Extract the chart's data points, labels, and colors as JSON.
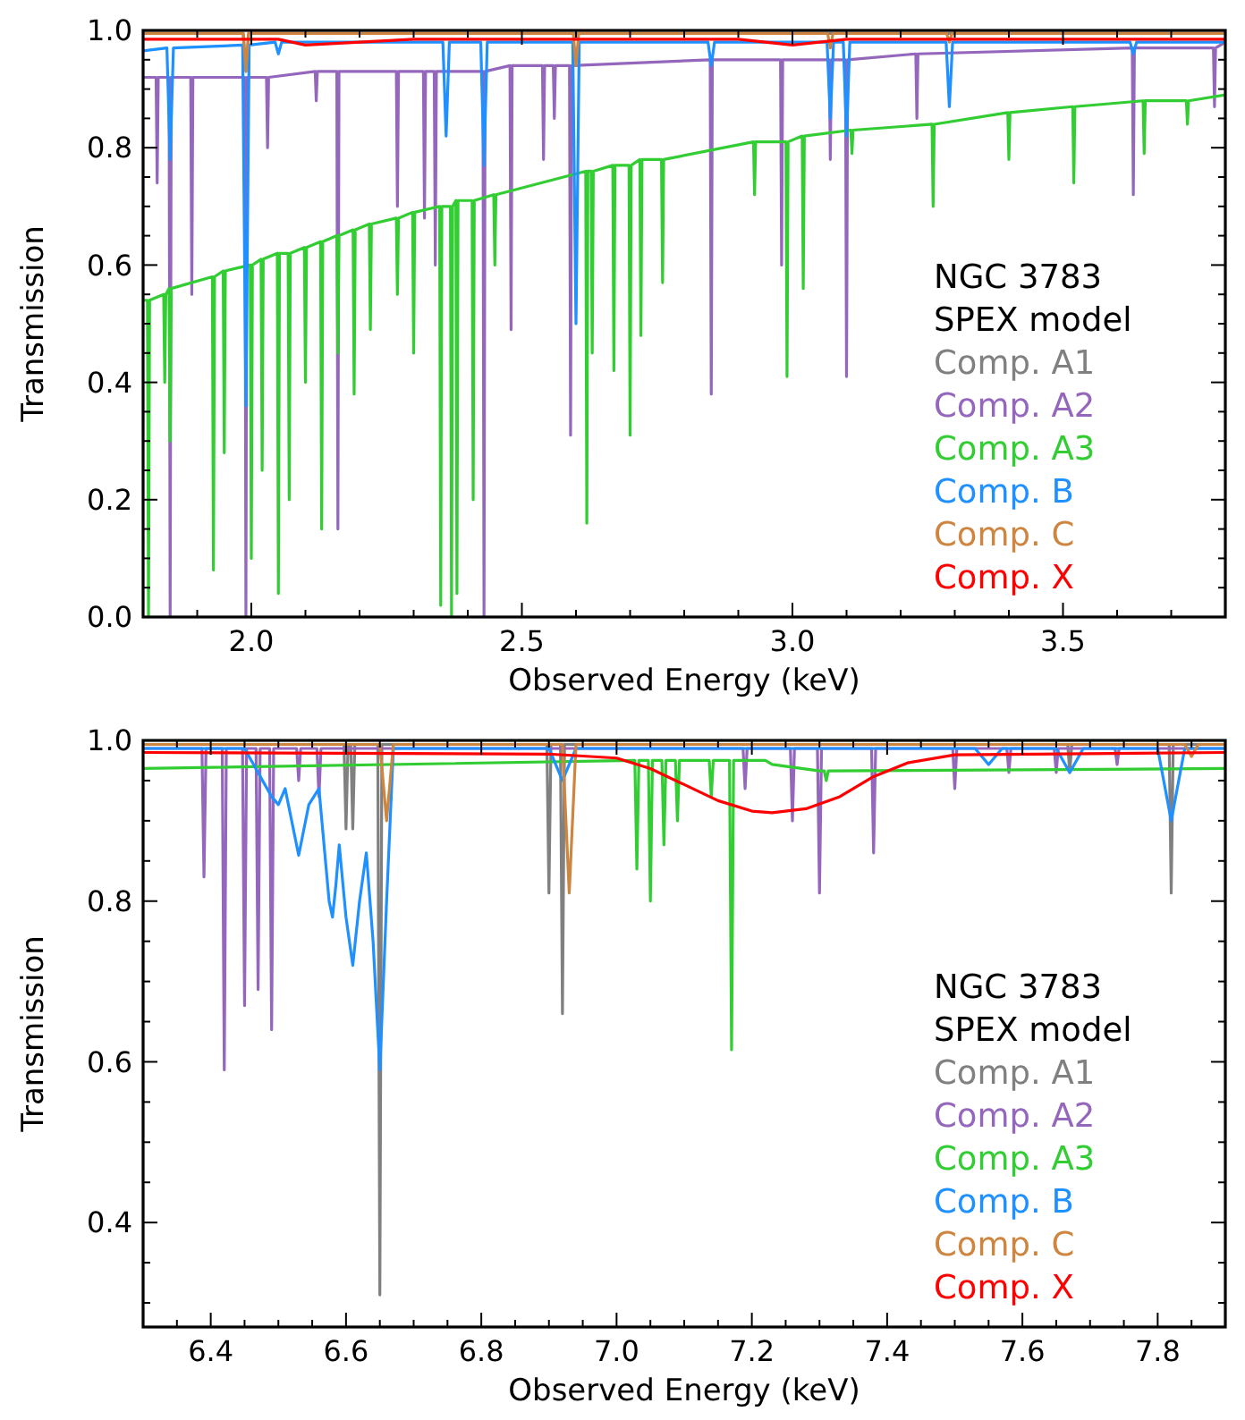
{
  "chart_data": [
    {
      "type": "line",
      "xlabel": "Observed Energy (keV)",
      "ylabel": "Transmission",
      "xlim": [
        1.8,
        3.8
      ],
      "ylim": [
        0,
        1.0
      ],
      "xticks": [
        {
          "value": 1.9,
          "label": null
        },
        {
          "value": 2.0,
          "label": "2.0"
        },
        {
          "value": 2.1,
          "label": null
        },
        {
          "value": 2.2,
          "label": null
        },
        {
          "value": 2.3,
          "label": null
        },
        {
          "value": 2.4,
          "label": null
        },
        {
          "value": 2.5,
          "label": "2.5"
        },
        {
          "value": 2.6,
          "label": null
        },
        {
          "value": 2.7,
          "label": null
        },
        {
          "value": 2.8,
          "label": null
        },
        {
          "value": 2.9,
          "label": null
        },
        {
          "value": 3.0,
          "label": "3.0"
        },
        {
          "value": 3.1,
          "label": null
        },
        {
          "value": 3.2,
          "label": null
        },
        {
          "value": 3.3,
          "label": null
        },
        {
          "value": 3.4,
          "label": null
        },
        {
          "value": 3.5,
          "label": "3.5"
        },
        {
          "value": 3.6,
          "label": null
        },
        {
          "value": 3.7,
          "label": null
        }
      ],
      "yticks": [
        {
          "value": 0,
          "label": "0.0"
        },
        {
          "value": 0.05,
          "label": null
        },
        {
          "value": 0.1,
          "label": null
        },
        {
          "value": 0.15,
          "label": null
        },
        {
          "value": 0.2,
          "label": "0.2"
        },
        {
          "value": 0.25,
          "label": null
        },
        {
          "value": 0.3,
          "label": null
        },
        {
          "value": 0.35,
          "label": null
        },
        {
          "value": 0.4,
          "label": "0.4"
        },
        {
          "value": 0.45,
          "label": null
        },
        {
          "value": 0.5,
          "label": null
        },
        {
          "value": 0.55,
          "label": null
        },
        {
          "value": 0.6,
          "label": "0.6"
        },
        {
          "value": 0.65,
          "label": null
        },
        {
          "value": 0.7,
          "label": null
        },
        {
          "value": 0.75,
          "label": null
        },
        {
          "value": 0.8,
          "label": "0.8"
        },
        {
          "value": 0.85,
          "label": null
        },
        {
          "value": 0.9,
          "label": null
        },
        {
          "value": 0.95,
          "label": null
        },
        {
          "value": 1.0,
          "label": "1.0"
        }
      ],
      "legend": "bottom right",
      "annotations": [
        "NGC 3783",
        "SPEX model"
      ],
      "series": [
        {
          "name": "Comp. A1",
          "color": "#808080",
          "x": [
            1.8,
            1.985,
            1.99,
            1.995,
            3.8
          ],
          "values": [
            0.995,
            0.995,
            0.93,
            0.995,
            0.995
          ]
        },
        {
          "name": "Comp. A2",
          "color": "#9467bd",
          "x": [
            1.8,
            1.824,
            1.826,
            1.828,
            1.848,
            1.85,
            1.852,
            1.888,
            1.89,
            1.892,
            1.988,
            1.99,
            1.992,
            2.028,
            2.03,
            2.032,
            2.118,
            2.12,
            2.122,
            2.158,
            2.16,
            2.162,
            2.268,
            2.27,
            2.272,
            2.318,
            2.32,
            2.322,
            2.338,
            2.34,
            2.342,
            2.428,
            2.43,
            2.432,
            2.478,
            2.48,
            2.482,
            2.538,
            2.54,
            2.542,
            2.558,
            2.56,
            2.562,
            2.588,
            2.59,
            2.592,
            2.848,
            2.85,
            2.852,
            2.978,
            2.98,
            2.982,
            3.068,
            3.07,
            3.072,
            3.098,
            3.1,
            3.102,
            3.228,
            3.23,
            3.232,
            3.628,
            3.63,
            3.632,
            3.778,
            3.78,
            3.782,
            3.8
          ],
          "values": [
            0.92,
            0.92,
            0.74,
            0.92,
            0.92,
            0,
            0.92,
            0.92,
            0.55,
            0.92,
            0.92,
            0,
            0.92,
            0.92,
            0.8,
            0.92,
            0.93,
            0.88,
            0.93,
            0.93,
            0.15,
            0.93,
            0.93,
            0.7,
            0.93,
            0.93,
            0.68,
            0.93,
            0.93,
            0.6,
            0.93,
            0.93,
            0,
            0.93,
            0.94,
            0.49,
            0.94,
            0.94,
            0.78,
            0.94,
            0.94,
            0.85,
            0.94,
            0.94,
            0.31,
            0.94,
            0.95,
            0.38,
            0.95,
            0.95,
            0.6,
            0.95,
            0.95,
            0.78,
            0.95,
            0.95,
            0.41,
            0.95,
            0.96,
            0.85,
            0.96,
            0.97,
            0.72,
            0.97,
            0.97,
            0.87,
            0.97,
            0.98
          ]
        },
        {
          "name": "Comp. A3",
          "color": "#32cd32",
          "x": [
            1.8,
            1.808,
            1.81,
            1.812,
            1.838,
            1.84,
            1.842,
            1.848,
            1.85,
            1.852,
            1.928,
            1.93,
            1.932,
            1.948,
            1.95,
            1.952,
            1.998,
            2.0,
            2.002,
            2.018,
            2.02,
            2.022,
            2.048,
            2.05,
            2.052,
            2.068,
            2.07,
            2.072,
            2.098,
            2.1,
            2.102,
            2.128,
            2.13,
            2.132,
            2.158,
            2.16,
            2.162,
            2.188,
            2.19,
            2.192,
            2.218,
            2.22,
            2.222,
            2.268,
            2.27,
            2.272,
            2.298,
            2.3,
            2.302,
            2.348,
            2.35,
            2.352,
            2.368,
            2.37,
            2.372,
            2.378,
            2.38,
            2.382,
            2.408,
            2.41,
            2.412,
            2.448,
            2.45,
            2.452,
            2.618,
            2.62,
            2.622,
            2.628,
            2.63,
            2.632,
            2.668,
            2.67,
            2.672,
            2.698,
            2.7,
            2.702,
            2.718,
            2.72,
            2.722,
            2.758,
            2.76,
            2.762,
            2.928,
            2.93,
            2.932,
            2.988,
            2.99,
            2.992,
            3.018,
            3.02,
            3.022,
            3.108,
            3.11,
            3.112,
            3.258,
            3.26,
            3.262,
            3.398,
            3.4,
            3.402,
            3.518,
            3.52,
            3.522,
            3.648,
            3.65,
            3.652,
            3.728,
            3.73,
            3.732,
            3.8
          ],
          "values": [
            0.54,
            0.54,
            0,
            0.54,
            0.55,
            0.4,
            0.55,
            0.56,
            0.3,
            0.56,
            0.58,
            0.08,
            0.58,
            0.59,
            0.28,
            0.59,
            0.6,
            0.1,
            0.6,
            0.61,
            0.25,
            0.61,
            0.62,
            0.04,
            0.62,
            0.62,
            0.2,
            0.62,
            0.63,
            0.4,
            0.63,
            0.64,
            0.15,
            0.64,
            0.65,
            0.45,
            0.65,
            0.66,
            0.38,
            0.66,
            0.67,
            0.49,
            0.67,
            0.68,
            0.55,
            0.68,
            0.69,
            0.45,
            0.69,
            0.7,
            0.02,
            0.7,
            0.7,
            0,
            0.7,
            0.71,
            0.04,
            0.71,
            0.71,
            0.2,
            0.71,
            0.72,
            0.6,
            0.72,
            0.76,
            0.16,
            0.76,
            0.76,
            0.45,
            0.76,
            0.77,
            0.42,
            0.77,
            0.77,
            0.31,
            0.77,
            0.78,
            0.48,
            0.78,
            0.78,
            0.57,
            0.78,
            0.81,
            0.72,
            0.81,
            0.81,
            0.41,
            0.81,
            0.82,
            0.56,
            0.82,
            0.83,
            0.79,
            0.83,
            0.84,
            0.7,
            0.84,
            0.86,
            0.78,
            0.86,
            0.87,
            0.74,
            0.87,
            0.88,
            0.79,
            0.88,
            0.88,
            0.84,
            0.88,
            0.89
          ]
        },
        {
          "name": "Comp. B",
          "color": "#1e90ff",
          "x": [
            1.8,
            1.844,
            1.85,
            1.856,
            1.984,
            1.99,
            1.996,
            2.044,
            2.05,
            2.056,
            2.354,
            2.36,
            2.366,
            2.424,
            2.43,
            2.436,
            2.594,
            2.6,
            2.606,
            2.844,
            2.85,
            2.856,
            3.064,
            3.07,
            3.076,
            3.094,
            3.1,
            3.106,
            3.284,
            3.29,
            3.296,
            3.624,
            3.63,
            3.636,
            3.8
          ],
          "values": [
            0.965,
            0.97,
            0.78,
            0.97,
            0.975,
            0.36,
            0.975,
            0.98,
            0.96,
            0.98,
            0.98,
            0.82,
            0.98,
            0.98,
            0.77,
            0.98,
            0.98,
            0.5,
            0.98,
            0.98,
            0.94,
            0.98,
            0.98,
            0.85,
            0.98,
            0.98,
            0.82,
            0.98,
            0.98,
            0.87,
            0.98,
            0.98,
            0.96,
            0.98,
            0.98
          ]
        },
        {
          "name": "Comp. C",
          "color": "#cd853f",
          "x": [
            1.8,
            1.985,
            1.99,
            1.995,
            2.595,
            2.6,
            2.605,
            3.065,
            3.07,
            3.075,
            3.285,
            3.29,
            3.295,
            3.8
          ],
          "values": [
            0.995,
            0.995,
            0.93,
            0.995,
            0.995,
            0.94,
            0.995,
            0.995,
            0.97,
            0.995,
            0.995,
            0.98,
            0.995,
            0.995
          ]
        },
        {
          "name": "Comp. X",
          "color": "#ff0000",
          "x": [
            1.8,
            2.05,
            2.1,
            2.2,
            2.3,
            2.9,
            3.0,
            3.1,
            3.8
          ],
          "values": [
            0.985,
            0.985,
            0.975,
            0.98,
            0.985,
            0.985,
            0.975,
            0.985,
            0.985
          ]
        }
      ]
    },
    {
      "type": "line",
      "xlabel": "Observed Energy (keV)",
      "ylabel": "Transmission",
      "xlim": [
        6.3,
        7.9
      ],
      "ylim": [
        0.27,
        1.0
      ],
      "xticks": [
        {
          "value": 6.35,
          "label": null
        },
        {
          "value": 6.4,
          "label": "6.4"
        },
        {
          "value": 6.45,
          "label": null
        },
        {
          "value": 6.5,
          "label": null
        },
        {
          "value": 6.55,
          "label": null
        },
        {
          "value": 6.6,
          "label": "6.6"
        },
        {
          "value": 6.65,
          "label": null
        },
        {
          "value": 6.7,
          "label": null
        },
        {
          "value": 6.75,
          "label": null
        },
        {
          "value": 6.8,
          "label": "6.8"
        },
        {
          "value": 6.85,
          "label": null
        },
        {
          "value": 6.9,
          "label": null
        },
        {
          "value": 6.95,
          "label": null
        },
        {
          "value": 7.0,
          "label": "7.0"
        },
        {
          "value": 7.05,
          "label": null
        },
        {
          "value": 7.1,
          "label": null
        },
        {
          "value": 7.15,
          "label": null
        },
        {
          "value": 7.2,
          "label": "7.2"
        },
        {
          "value": 7.25,
          "label": null
        },
        {
          "value": 7.3,
          "label": null
        },
        {
          "value": 7.35,
          "label": null
        },
        {
          "value": 7.4,
          "label": "7.4"
        },
        {
          "value": 7.45,
          "label": null
        },
        {
          "value": 7.5,
          "label": null
        },
        {
          "value": 7.55,
          "label": null
        },
        {
          "value": 7.6,
          "label": "7.6"
        },
        {
          "value": 7.65,
          "label": null
        },
        {
          "value": 7.7,
          "label": null
        },
        {
          "value": 7.75,
          "label": null
        },
        {
          "value": 7.8,
          "label": "7.8"
        },
        {
          "value": 7.85,
          "label": null
        }
      ],
      "yticks": [
        {
          "value": 0.3,
          "label": null
        },
        {
          "value": 0.35,
          "label": null
        },
        {
          "value": 0.4,
          "label": "0.4"
        },
        {
          "value": 0.45,
          "label": null
        },
        {
          "value": 0.5,
          "label": null
        },
        {
          "value": 0.55,
          "label": null
        },
        {
          "value": 0.6,
          "label": "0.6"
        },
        {
          "value": 0.65,
          "label": null
        },
        {
          "value": 0.7,
          "label": null
        },
        {
          "value": 0.75,
          "label": null
        },
        {
          "value": 0.8,
          "label": "0.8"
        },
        {
          "value": 0.85,
          "label": null
        },
        {
          "value": 0.9,
          "label": null
        },
        {
          "value": 0.95,
          "label": null
        },
        {
          "value": 1.0,
          "label": "1.0"
        }
      ],
      "legend": "bottom right",
      "annotations": [
        "NGC 3783",
        "SPEX model"
      ],
      "series": [
        {
          "name": "Comp. A1",
          "color": "#808080",
          "x": [
            6.3,
            6.597,
            6.6,
            6.603,
            6.607,
            6.61,
            6.613,
            6.647,
            6.65,
            6.653,
            6.897,
            6.9,
            6.903,
            6.917,
            6.92,
            6.923,
            7.667,
            7.67,
            7.673,
            7.817,
            7.82,
            7.823,
            7.9
          ],
          "values": [
            0.995,
            0.995,
            0.89,
            0.995,
            0.995,
            0.89,
            0.995,
            0.995,
            0.31,
            0.995,
            0.995,
            0.81,
            0.995,
            0.995,
            0.66,
            0.995,
            0.995,
            0.96,
            0.995,
            0.995,
            0.81,
            0.995,
            0.995
          ]
        },
        {
          "name": "Comp. A2",
          "color": "#9467bd",
          "x": [
            6.3,
            6.387,
            6.39,
            6.393,
            6.417,
            6.42,
            6.423,
            6.447,
            6.45,
            6.453,
            6.467,
            6.47,
            6.473,
            6.487,
            6.49,
            6.493,
            6.527,
            6.53,
            6.533,
            6.557,
            6.56,
            6.563,
            7.187,
            7.19,
            7.193,
            7.257,
            7.26,
            7.263,
            7.297,
            7.3,
            7.303,
            7.377,
            7.38,
            7.383,
            7.497,
            7.5,
            7.503,
            7.577,
            7.58,
            7.583,
            7.647,
            7.65,
            7.653,
            7.737,
            7.74,
            7.743,
            7.9
          ],
          "values": [
            0.99,
            0.99,
            0.83,
            0.99,
            0.99,
            0.59,
            0.99,
            0.99,
            0.67,
            0.99,
            0.99,
            0.69,
            0.99,
            0.99,
            0.64,
            0.99,
            0.99,
            0.95,
            0.99,
            0.99,
            0.93,
            0.99,
            0.99,
            0.94,
            0.99,
            0.99,
            0.9,
            0.99,
            0.99,
            0.81,
            0.99,
            0.99,
            0.86,
            0.99,
            0.99,
            0.94,
            0.99,
            0.99,
            0.96,
            0.99,
            0.99,
            0.96,
            0.99,
            0.99,
            0.97,
            0.99,
            0.99
          ]
        },
        {
          "name": "Comp. A3",
          "color": "#32cd32",
          "x": [
            6.3,
            7.027,
            7.03,
            7.033,
            7.047,
            7.05,
            7.053,
            7.067,
            7.07,
            7.073,
            7.087,
            7.09,
            7.093,
            7.137,
            7.14,
            7.143,
            7.167,
            7.17,
            7.173,
            7.22,
            7.23,
            7.3,
            7.307,
            7.31,
            7.313,
            7.9
          ],
          "values": [
            0.965,
            0.975,
            0.84,
            0.975,
            0.975,
            0.8,
            0.975,
            0.975,
            0.87,
            0.975,
            0.975,
            0.9,
            0.975,
            0.975,
            0.93,
            0.975,
            0.975,
            0.615,
            0.975,
            0.975,
            0.97,
            0.962,
            0.962,
            0.95,
            0.962,
            0.965
          ]
        },
        {
          "name": "Comp. B",
          "color": "#1e90ff",
          "x": [
            6.3,
            6.45,
            6.47,
            6.49,
            6.5,
            6.51,
            6.53,
            6.545,
            6.56,
            6.575,
            6.58,
            6.585,
            6.59,
            6.6,
            6.61,
            6.62,
            6.63,
            6.64,
            6.65,
            6.66,
            6.67,
            6.9,
            6.92,
            6.94,
            7.53,
            7.55,
            7.57,
            7.65,
            7.67,
            7.69,
            7.8,
            7.82,
            7.84,
            7.9
          ],
          "values": [
            0.99,
            0.99,
            0.96,
            0.93,
            0.92,
            0.94,
            0.857,
            0.92,
            0.94,
            0.8,
            0.78,
            0.82,
            0.87,
            0.78,
            0.72,
            0.8,
            0.86,
            0.75,
            0.59,
            0.8,
            0.99,
            0.99,
            0.95,
            0.99,
            0.99,
            0.97,
            0.99,
            0.99,
            0.96,
            0.99,
            0.99,
            0.9,
            0.99,
            0.99
          ]
        },
        {
          "name": "Comp. C",
          "color": "#cd853f",
          "x": [
            6.3,
            6.65,
            6.66,
            6.67,
            6.92,
            6.93,
            6.94,
            7.84,
            7.85,
            7.86,
            7.9
          ],
          "values": [
            0.995,
            0.995,
            0.9,
            0.995,
            0.995,
            0.81,
            0.995,
            0.995,
            0.98,
            0.995,
            0.995
          ]
        },
        {
          "name": "Comp. X",
          "color": "#ff0000",
          "x": [
            6.3,
            6.9,
            7.0,
            7.05,
            7.1,
            7.15,
            7.2,
            7.23,
            7.28,
            7.33,
            7.38,
            7.43,
            7.5,
            7.9
          ],
          "values": [
            0.985,
            0.983,
            0.978,
            0.965,
            0.945,
            0.925,
            0.912,
            0.91,
            0.915,
            0.93,
            0.955,
            0.972,
            0.982,
            0.985
          ]
        }
      ]
    }
  ]
}
